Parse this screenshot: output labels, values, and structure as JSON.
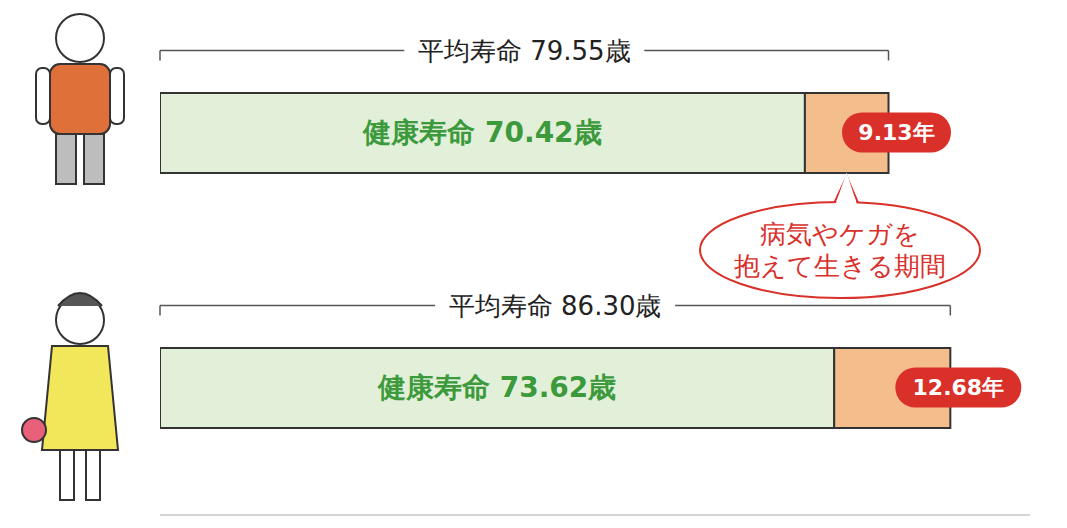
{
  "chart_data": {
    "type": "bar",
    "orientation": "horizontal",
    "stacked": true,
    "data_labels": true,
    "tick_labels": false,
    "grid": false,
    "categories": [
      null,
      null
    ],
    "xlim": [
      0,
      95
    ],
    "series": [
      {
        "color": "#e2f0d9",
        "values": [
          70.42,
          73.62
        ],
        "value_labels": [
          "健康寿命 70.42歳",
          "健康寿命 73.62歳"
        ]
      },
      {
        "name": "病気やケガを抱えて生きる期間",
        "color": "#f4bd8c",
        "values": [
          9.13,
          12.68
        ],
        "value_labels": [
          "9.13年",
          "12.68年"
        ]
      }
    ],
    "totals": [
      {
        "value": 79.55,
        "label": "平均寿命 79.55歳"
      },
      {
        "value": 86.3,
        "label": "平均寿命 86.30歳"
      }
    ]
  }
}
